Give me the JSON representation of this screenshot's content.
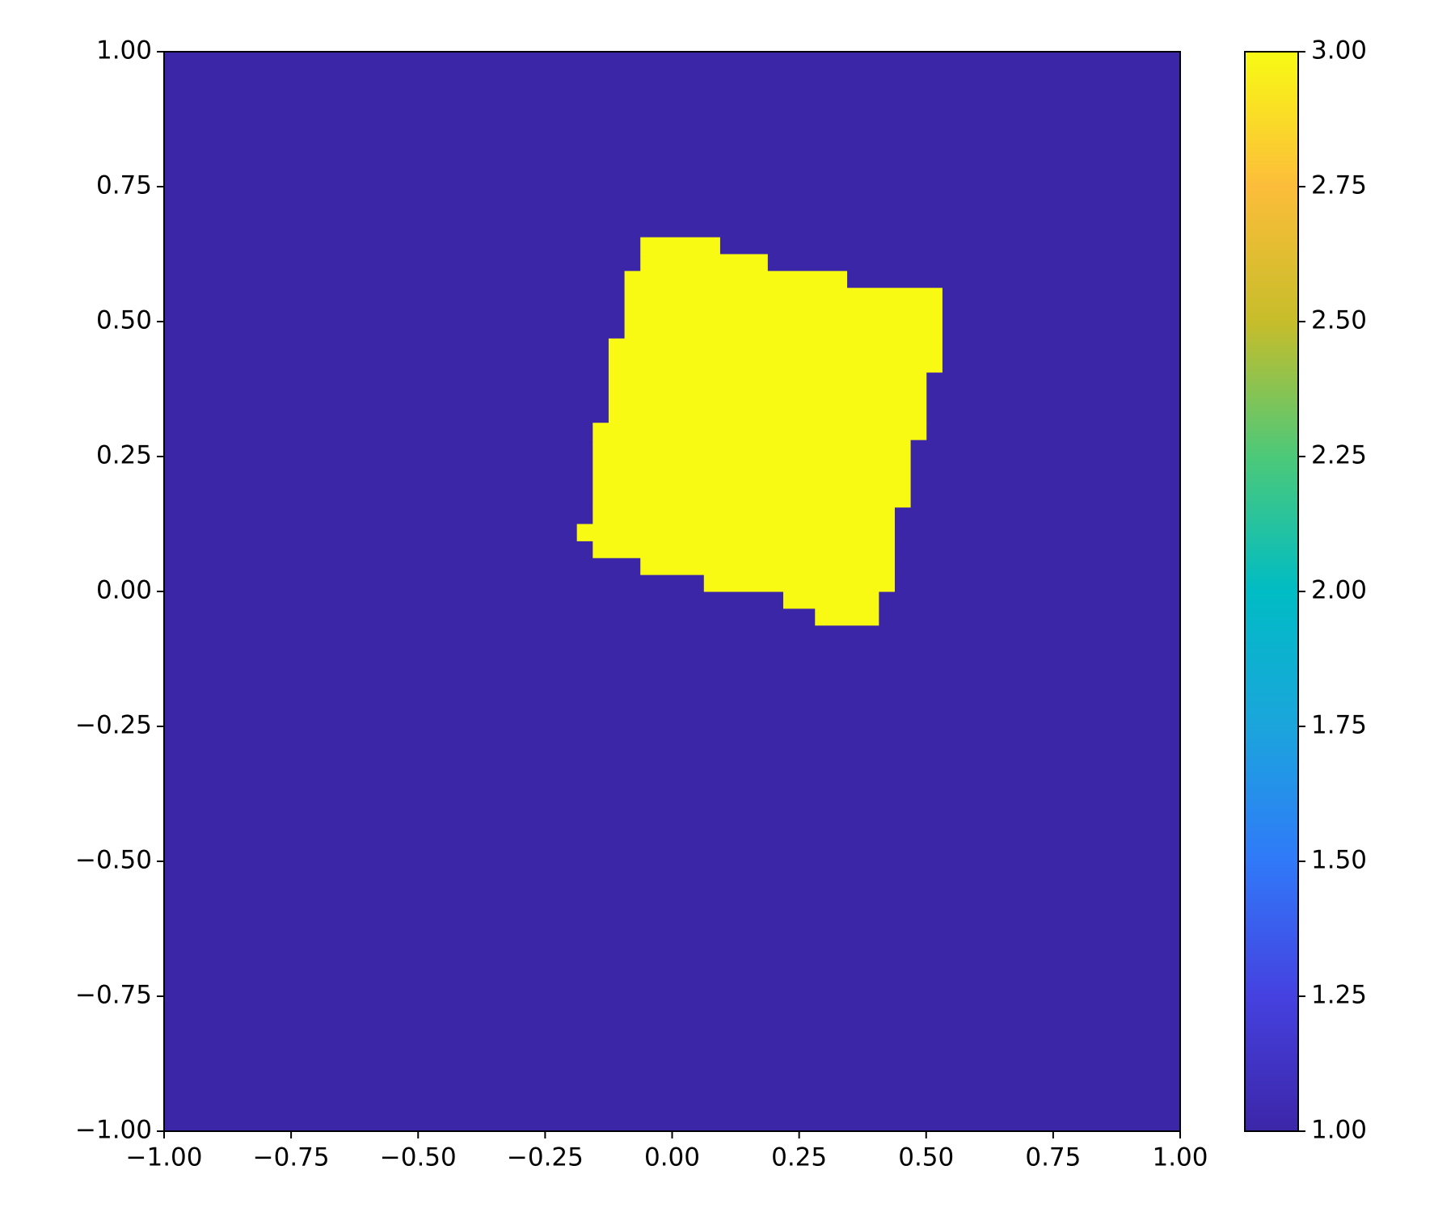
{
  "chart_data": {
    "type": "heatmap",
    "xlim": [
      -1,
      1
    ],
    "ylim": [
      -1,
      1
    ],
    "xticks": [
      {
        "value": -1,
        "label": "−1.00"
      },
      {
        "value": -0.75,
        "label": "−0.75"
      },
      {
        "value": -0.5,
        "label": "−0.50"
      },
      {
        "value": -0.25,
        "label": "−0.25"
      },
      {
        "value": 0,
        "label": "0.00"
      },
      {
        "value": 0.25,
        "label": "0.25"
      },
      {
        "value": 0.5,
        "label": "0.50"
      },
      {
        "value": 0.75,
        "label": "0.75"
      },
      {
        "value": 1,
        "label": "1.00"
      }
    ],
    "yticks": [
      {
        "value": -1,
        "label": "−1.00"
      },
      {
        "value": -0.75,
        "label": "−0.75"
      },
      {
        "value": -0.5,
        "label": "−0.50"
      },
      {
        "value": -0.25,
        "label": "−0.25"
      },
      {
        "value": 0,
        "label": "0.00"
      },
      {
        "value": 0.25,
        "label": "0.25"
      },
      {
        "value": 0.5,
        "label": "0.50"
      },
      {
        "value": 0.75,
        "label": "0.75"
      },
      {
        "value": 1,
        "label": "1.00"
      }
    ],
    "background": 1,
    "cells": [
      {
        "x": [
          -0.0625,
          0.09375
        ],
        "y": [
          0.625,
          0.65625
        ],
        "value": 3
      },
      {
        "x": [
          -0.0625,
          0.1875
        ],
        "y": [
          0.59375,
          0.625
        ],
        "value": 3
      },
      {
        "x": [
          -0.09375,
          0.34375
        ],
        "y": [
          0.5625,
          0.59375
        ],
        "value": 3
      },
      {
        "x": [
          -0.09375,
          0.53125
        ],
        "y": [
          0.46875,
          0.5625
        ],
        "value": 3
      },
      {
        "x": [
          -0.125,
          0.53125
        ],
        "y": [
          0.40625,
          0.46875
        ],
        "value": 3
      },
      {
        "x": [
          -0.125,
          0.5
        ],
        "y": [
          0.3125,
          0.40625
        ],
        "value": 3
      },
      {
        "x": [
          -0.15625,
          0.5
        ],
        "y": [
          0.28125,
          0.3125
        ],
        "value": 3
      },
      {
        "x": [
          -0.15625,
          0.46875
        ],
        "y": [
          0.15625,
          0.28125
        ],
        "value": 3
      },
      {
        "x": [
          -0.15625,
          0.4375
        ],
        "y": [
          0.125,
          0.15625
        ],
        "value": 3
      },
      {
        "x": [
          -0.1875,
          0.4375
        ],
        "y": [
          0.09375,
          0.125
        ],
        "value": 3
      },
      {
        "x": [
          -0.15625,
          0.4375
        ],
        "y": [
          0.0625,
          0.09375
        ],
        "value": 3
      },
      {
        "x": [
          -0.0625,
          0.4375
        ],
        "y": [
          0.03125,
          0.0625
        ],
        "value": 3
      },
      {
        "x": [
          0.0625,
          0.4375
        ],
        "y": [
          0,
          0.03125
        ],
        "value": 3
      },
      {
        "x": [
          0.21875,
          0.40625
        ],
        "y": [
          -0.03125,
          0
        ],
        "value": 3
      },
      {
        "x": [
          0.28125,
          0.40625
        ],
        "y": [
          -0.0625,
          -0.03125
        ],
        "value": 3
      }
    ],
    "colorbar": {
      "lim": [
        1,
        3
      ],
      "ticks": [
        {
          "value": 1,
          "label": "1.00"
        },
        {
          "value": 1.25,
          "label": "1.25"
        },
        {
          "value": 1.5,
          "label": "1.50"
        },
        {
          "value": 1.75,
          "label": "1.75"
        },
        {
          "value": 2,
          "label": "2.00"
        },
        {
          "value": 2.25,
          "label": "2.25"
        },
        {
          "value": 2.5,
          "label": "2.50"
        },
        {
          "value": 2.75,
          "label": "2.75"
        },
        {
          "value": 3,
          "label": "3.00"
        }
      ],
      "colors": [
        "#3c26a8",
        "#4541e0",
        "#3079f9",
        "#1ba5dc",
        "#00bcc4",
        "#4cc979",
        "#c7bd2a",
        "#fcbd3a",
        "#f8fa14"
      ]
    }
  }
}
